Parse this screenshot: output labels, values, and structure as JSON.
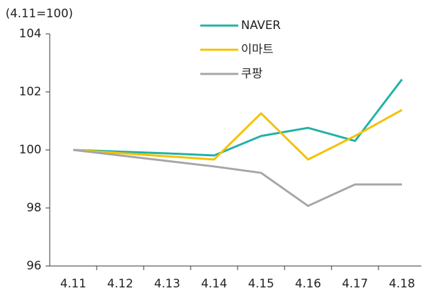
{
  "chart_data": {
    "type": "line",
    "axis_label": "(4.11=100)",
    "categories": [
      "4.11",
      "4.12",
      "4.13",
      "4.14",
      "4.15",
      "4.16",
      "4.17",
      "4.18"
    ],
    "series": [
      {
        "name": "NAVER",
        "color": "#20b2a6",
        "values": [
          100,
          99.94,
          99.88,
          99.81,
          100.48,
          100.76,
          100.31,
          102.43
        ]
      },
      {
        "name": "이마트",
        "color": "#f5c100",
        "values": [
          100,
          99.89,
          99.78,
          99.67,
          101.26,
          99.67,
          100.48,
          101.38
        ]
      },
      {
        "name": "쿠팡",
        "color": "#a6a6a6",
        "values": [
          100,
          99.81,
          99.62,
          99.43,
          99.21,
          98.07,
          98.81,
          98.81
        ]
      }
    ],
    "ylim": [
      96,
      104
    ],
    "yticks": [
      96,
      98,
      100,
      102,
      104
    ],
    "grid": false,
    "legend": "top"
  }
}
